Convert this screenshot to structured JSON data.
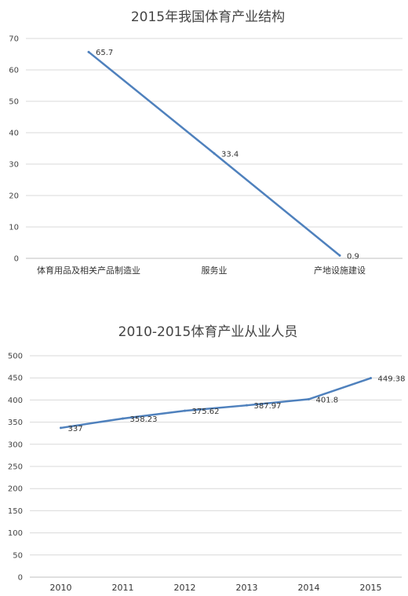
{
  "chart_data": [
    {
      "type": "line",
      "title": "2015年我国体育产业结构",
      "categories": [
        "体育用品及相关产品制造业",
        "服务业",
        "产地设施建设"
      ],
      "values": [
        65.7,
        33.4,
        0.9
      ],
      "data_labels": [
        "65.7",
        "33.4",
        "0.9"
      ],
      "yticks": [
        "0",
        "10",
        "20",
        "30",
        "40",
        "50",
        "60",
        "70"
      ],
      "ylim": [
        0,
        70
      ],
      "grid": true,
      "color": "#4f81bd"
    },
    {
      "type": "line",
      "title": "2010-2015体育产业从业人员",
      "categories": [
        "2010",
        "2011",
        "2012",
        "2013",
        "2014",
        "2015"
      ],
      "values": [
        337,
        358.23,
        375.62,
        387.97,
        401.8,
        449.38
      ],
      "data_labels": [
        "337",
        "358.23",
        "375.62",
        "387.97",
        "401.8",
        "449.38"
      ],
      "yticks": [
        "0",
        "50",
        "100",
        "150",
        "200",
        "250",
        "300",
        "350",
        "400",
        "450",
        "500"
      ],
      "ylim": [
        0,
        500
      ],
      "grid": true,
      "color": "#4f81bd"
    }
  ]
}
